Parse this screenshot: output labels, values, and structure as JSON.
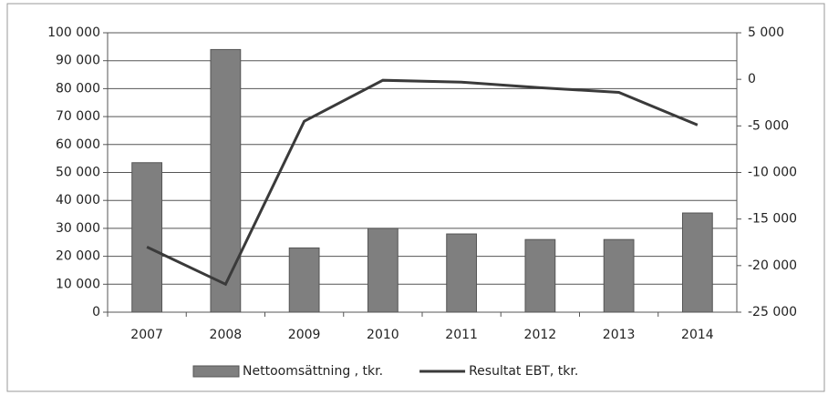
{
  "chart_data": {
    "type": "bar",
    "categories": [
      "2007",
      "2008",
      "2009",
      "2010",
      "2011",
      "2012",
      "2013",
      "2014"
    ],
    "series": [
      {
        "name": "Nettoomsättning , tkr.",
        "type": "bar",
        "color": "#7f7f7f",
        "values": [
          53500,
          94000,
          23000,
          30000,
          28000,
          26000,
          26000,
          35500
        ]
      },
      {
        "name": "Resultat EBT, tkr.",
        "type": "line",
        "axis": "y2",
        "color": "#3a3a3a",
        "values": [
          -18000,
          -22000,
          -4500,
          -100,
          -300,
          -900,
          -1400,
          -4900
        ]
      }
    ],
    "ylim": [
      0,
      100000
    ],
    "yticks": [
      0,
      {
        "value": 10000,
        "label": "10 000"
      },
      {
        "value": 20000,
        "label": "20 000"
      },
      {
        "value": 30000,
        "label": "30 000"
      },
      {
        "value": 40000,
        "label": "40 000"
      },
      {
        "value": 50000,
        "label": "50 000"
      },
      {
        "value": 60000,
        "label": "60 000"
      },
      {
        "value": 70000,
        "label": "70 000"
      },
      {
        "value": 80000,
        "label": "80 000"
      },
      {
        "value": 90000,
        "label": "90 000"
      },
      {
        "value": 100000,
        "label": "100 000"
      }
    ],
    "y2lim": [
      -25000,
      5000
    ],
    "y2ticks": [
      {
        "value": -25000,
        "label": "-25 000"
      },
      {
        "value": -20000,
        "label": "-20 000"
      },
      {
        "value": -15000,
        "label": "-15 000"
      },
      {
        "value": -10000,
        "label": "-10 000"
      },
      {
        "value": -5000,
        "label": "-5 000"
      },
      0,
      {
        "value": 5000,
        "label": "5 000"
      }
    ],
    "grid": true,
    "legend": "bottom"
  }
}
